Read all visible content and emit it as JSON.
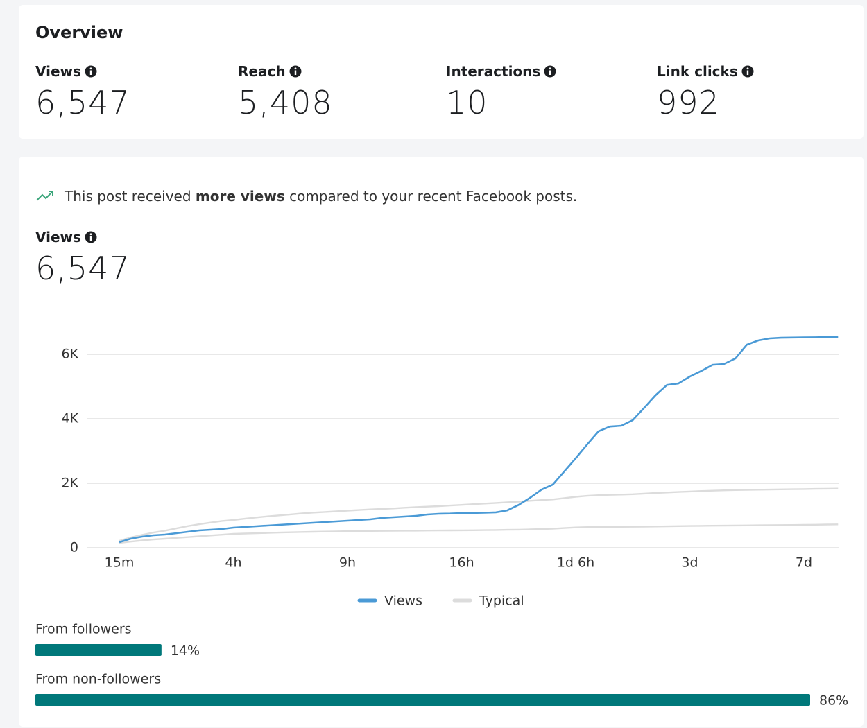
{
  "overview": {
    "title": "Overview",
    "metrics": [
      {
        "label": "Views",
        "value": "6,547"
      },
      {
        "label": "Reach",
        "value": "5,408"
      },
      {
        "label": "Interactions",
        "value": "10"
      },
      {
        "label": "Link clicks",
        "value": "992"
      }
    ]
  },
  "insight": {
    "before": "This post received",
    "emphasis": "more views",
    "after": "compared to your recent Facebook posts."
  },
  "views_summary": {
    "label": "Views",
    "value": "6,547"
  },
  "chart_data": [
    {
      "type": "line",
      "categories": [
        "15m",
        null,
        null,
        null,
        null,
        null,
        null,
        null,
        null,
        null,
        "4h",
        null,
        null,
        null,
        null,
        null,
        null,
        null,
        null,
        null,
        "9h",
        null,
        null,
        null,
        null,
        null,
        null,
        null,
        null,
        null,
        "16h",
        null,
        null,
        null,
        null,
        null,
        null,
        null,
        null,
        null,
        "1d 6h",
        null,
        null,
        null,
        null,
        null,
        null,
        null,
        null,
        null,
        "3d",
        null,
        null,
        null,
        null,
        null,
        null,
        null,
        null,
        null,
        "7d",
        null,
        null,
        null
      ],
      "ylim": [
        0,
        7000
      ],
      "yticks": [
        0,
        {
          "value": 2000,
          "label": "2K"
        },
        {
          "value": 4000,
          "label": "4K"
        },
        {
          "value": 6000,
          "label": "6K"
        }
      ],
      "grid": true,
      "legend": "bottom",
      "series": [
        {
          "name": "Views",
          "color": "#4a9ad6",
          "values": [
            172,
            280,
            344,
            387,
            409,
            452,
            495,
            538,
            559,
            580,
            624,
            645,
            667,
            688,
            710,
            731,
            752,
            774,
            795,
            817,
            838,
            860,
            881,
            924,
            946,
            967,
            989,
            1032,
            1053,
            1060,
            1075,
            1080,
            1085,
            1100,
            1160,
            1330,
            1550,
            1800,
            1960,
            2365,
            2775,
            3200,
            3610,
            3760,
            3785,
            3960,
            4340,
            4730,
            5050,
            5095,
            5310,
            5480,
            5675,
            5700,
            5870,
            6300,
            6430,
            6495,
            6515,
            6520,
            6525,
            6530,
            6535,
            6540
          ]
        },
        {
          "name": "Typical",
          "color": "#dcdcdc",
          "values": [
            215,
            320,
            400,
            470,
            530,
            600,
            670,
            730,
            780,
            830,
            860,
            900,
            940,
            975,
            1005,
            1035,
            1065,
            1090,
            1110,
            1130,
            1150,
            1170,
            1190,
            1205,
            1220,
            1240,
            1260,
            1275,
            1290,
            1310,
            1330,
            1350,
            1370,
            1390,
            1410,
            1430,
            1455,
            1480,
            1500,
            1540,
            1580,
            1610,
            1630,
            1640,
            1650,
            1660,
            1680,
            1700,
            1715,
            1730,
            1745,
            1760,
            1770,
            1780,
            1790,
            1795,
            1800,
            1805,
            1810,
            1815,
            1820,
            1825,
            1830,
            1835
          ],
          "lower": [
            150,
            190,
            225,
            255,
            280,
            305,
            330,
            355,
            380,
            405,
            430,
            440,
            450,
            460,
            470,
            480,
            488,
            495,
            502,
            508,
            515,
            518,
            520,
            523,
            525,
            528,
            530,
            533,
            535,
            538,
            540,
            543,
            546,
            550,
            556,
            562,
            570,
            580,
            590,
            610,
            630,
            640,
            645,
            648,
            650,
            652,
            655,
            660,
            665,
            670,
            675,
            680,
            683,
            686,
            690,
            693,
            696,
            700,
            703,
            706,
            710,
            715,
            720,
            725
          ]
        }
      ]
    },
    {
      "type": "hbar",
      "color": "#00787a",
      "categories": [
        "From followers",
        "From non-followers"
      ],
      "values": [
        14,
        86
      ],
      "value_labels": [
        "14%",
        "86%"
      ]
    }
  ]
}
